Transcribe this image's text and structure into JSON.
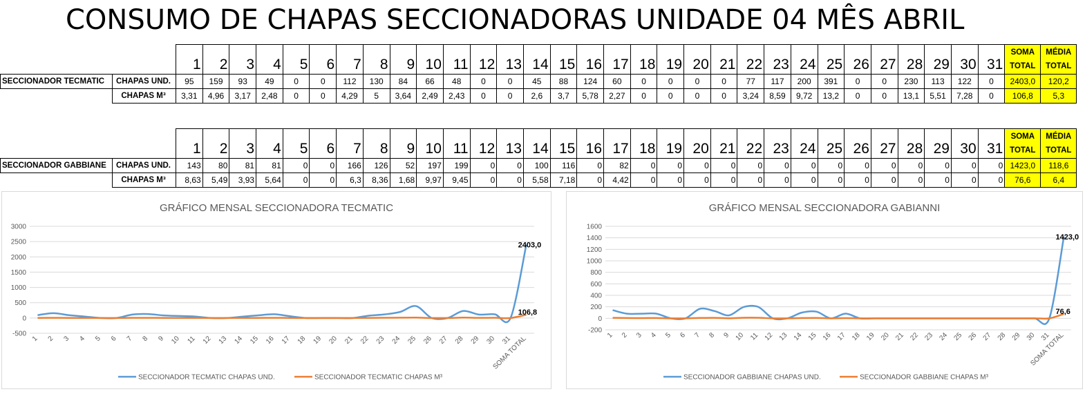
{
  "title": "CONSUMO DE CHAPAS SECCIONADORAS UNIDADE 04 MÊS ABRIL",
  "header": {
    "days": [
      "1",
      "2",
      "3",
      "4",
      "5",
      "6",
      "7",
      "8",
      "9",
      "10",
      "11",
      "12",
      "13",
      "14",
      "15",
      "16",
      "17",
      "18",
      "19",
      "20",
      "21",
      "22",
      "23",
      "24",
      "25",
      "26",
      "27",
      "28",
      "29",
      "30",
      "31"
    ],
    "soma_label": [
      "SOMA",
      "TOTAL"
    ],
    "media_label": [
      "MÉDIA",
      "TOTAL"
    ]
  },
  "tables": [
    {
      "machine": "SECCIONADOR TECMATIC",
      "rows": [
        {
          "label": "CHAPAS UND.",
          "values": [
            "95",
            "159",
            "93",
            "49",
            "0",
            "0",
            "112",
            "130",
            "84",
            "66",
            "48",
            "0",
            "0",
            "45",
            "88",
            "124",
            "60",
            "0",
            "0",
            "0",
            "0",
            "77",
            "117",
            "200",
            "391",
            "0",
            "0",
            "230",
            "113",
            "122",
            "0"
          ],
          "soma": "2403,0",
          "media": "120,2"
        },
        {
          "label": "CHAPAS M³",
          "values": [
            "3,31",
            "4,96",
            "3,17",
            "2,48",
            "0",
            "0",
            "4,29",
            "5",
            "3,64",
            "2,49",
            "2,43",
            "0",
            "0",
            "2,6",
            "3,7",
            "5,78",
            "2,27",
            "0",
            "0",
            "0",
            "0",
            "3,24",
            "8,59",
            "9,72",
            "13,2",
            "0",
            "0",
            "13,1",
            "5,51",
            "7,28",
            "0"
          ],
          "soma": "106,8",
          "media": "5,3"
        }
      ]
    },
    {
      "machine": "SECCIONADOR GABBIANE",
      "rows": [
        {
          "label": "CHAPAS UND.",
          "values": [
            "143",
            "80",
            "81",
            "81",
            "0",
            "0",
            "166",
            "126",
            "52",
            "197",
            "199",
            "0",
            "0",
            "100",
            "116",
            "0",
            "82",
            "0",
            "0",
            "0",
            "0",
            "0",
            "0",
            "0",
            "0",
            "0",
            "0",
            "0",
            "0",
            "0",
            "0"
          ],
          "soma": "1423,0",
          "media": "118,6"
        },
        {
          "label": "CHAPAS M³",
          "values": [
            "8,63",
            "5,49",
            "3,93",
            "5,64",
            "0",
            "0",
            "6,3",
            "8,36",
            "1,68",
            "9,97",
            "9,45",
            "0",
            "0",
            "5,58",
            "7,18",
            "0",
            "4,42",
            "0",
            "0",
            "0",
            "0",
            "0",
            "0",
            "0",
            "0",
            "0",
            "0",
            "0",
            "0",
            "0",
            "0"
          ],
          "soma": "76,6",
          "media": "6,4"
        }
      ]
    }
  ],
  "chart_data": [
    {
      "type": "line",
      "title": "GRÁFICO MENSAL SECCIONADORA TECMATIC",
      "categories": [
        "1",
        "2",
        "3",
        "4",
        "5",
        "6",
        "7",
        "8",
        "9",
        "10",
        "11",
        "12",
        "13",
        "14",
        "15",
        "16",
        "17",
        "18",
        "19",
        "20",
        "21",
        "22",
        "23",
        "24",
        "25",
        "26",
        "27",
        "28",
        "29",
        "30",
        "31",
        "SOMA TOTAL"
      ],
      "ylim": [
        -500,
        3000
      ],
      "yticks": [
        "-500",
        "0",
        "500",
        "1000",
        "1500",
        "2000",
        "2500",
        "3000"
      ],
      "ytick_values": [
        -500,
        0,
        500,
        1000,
        1500,
        2000,
        2500,
        3000
      ],
      "grid": true,
      "legend": "bottom",
      "series": [
        {
          "name": "SECCIONADOR TECMATIC CHAPAS UND.",
          "color": "#5b9bd5",
          "values": [
            95,
            159,
            93,
            49,
            0,
            0,
            112,
            130,
            84,
            66,
            48,
            0,
            0,
            45,
            88,
            124,
            60,
            0,
            0,
            0,
            0,
            77,
            117,
            200,
            391,
            0,
            0,
            230,
            113,
            122,
            0,
            2403.0
          ],
          "end_label": "2403,0"
        },
        {
          "name": "SECCIONADOR TECMATIC CHAPAS M³",
          "color": "#ed7d31",
          "values": [
            3.31,
            4.96,
            3.17,
            2.48,
            0,
            0,
            4.29,
            5,
            3.64,
            2.49,
            2.43,
            0,
            0,
            2.6,
            3.7,
            5.78,
            2.27,
            0,
            0,
            0,
            0,
            3.24,
            8.59,
            9.72,
            13.2,
            0,
            0,
            13.1,
            5.51,
            7.28,
            0,
            106.8
          ],
          "end_label": "106,8"
        }
      ]
    },
    {
      "type": "line",
      "title": "GRÁFICO MENSAL SECCIONADORA GABIANNI",
      "categories": [
        "1",
        "2",
        "3",
        "4",
        "5",
        "6",
        "7",
        "8",
        "9",
        "10",
        "11",
        "12",
        "13",
        "14",
        "15",
        "16",
        "17",
        "18",
        "19",
        "20",
        "21",
        "22",
        "23",
        "24",
        "25",
        "26",
        "27",
        "28",
        "29",
        "30",
        "31",
        "SOMA TOTAL"
      ],
      "ylim": [
        -200,
        1600
      ],
      "yticks": [
        "-200",
        "0",
        "200",
        "400",
        "600",
        "800",
        "1000",
        "1200",
        "1400",
        "1600"
      ],
      "ytick_values": [
        -200,
        0,
        200,
        400,
        600,
        800,
        1000,
        1200,
        1400,
        1600
      ],
      "grid": true,
      "legend": "bottom",
      "series": [
        {
          "name": "SECCIONADOR GABBIANE CHAPAS UND.",
          "color": "#5b9bd5",
          "values": [
            143,
            80,
            81,
            81,
            0,
            0,
            166,
            126,
            52,
            197,
            199,
            0,
            0,
            100,
            116,
            0,
            82,
            0,
            0,
            0,
            0,
            0,
            0,
            0,
            0,
            0,
            0,
            0,
            0,
            0,
            0,
            1423.0
          ],
          "end_label": "1423,0"
        },
        {
          "name": "SECCIONADOR GABBIANE CHAPAS M³",
          "color": "#ed7d31",
          "values": [
            8.63,
            5.49,
            3.93,
            5.64,
            0,
            0,
            6.3,
            8.36,
            1.68,
            9.97,
            9.45,
            0,
            0,
            5.58,
            7.18,
            0,
            4.42,
            0,
            0,
            0,
            0,
            0,
            0,
            0,
            0,
            0,
            0,
            0,
            0,
            0,
            0,
            76.6
          ],
          "end_label": "76,6"
        }
      ]
    }
  ]
}
